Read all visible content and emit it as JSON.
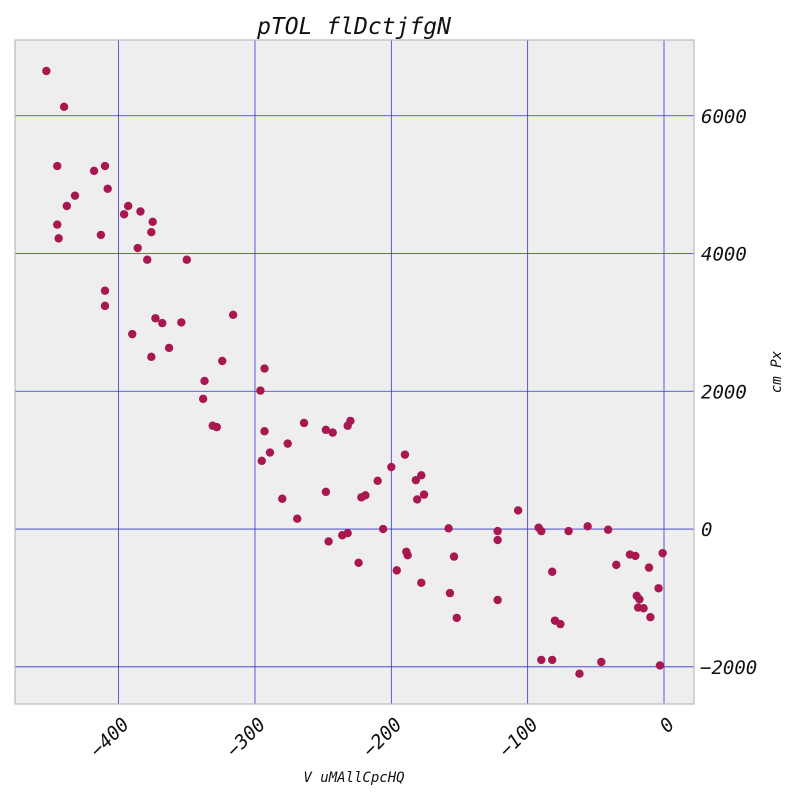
{
  "chart_data": {
    "type": "scatter",
    "title": "pTOL flDctjfgN",
    "xlabel": "V uMAllCpcHQ",
    "ylabel": "cm Px",
    "xlim": [
      -476,
      22
    ],
    "ylim": [
      -2540,
      7100
    ],
    "x_ticks": [
      -400,
      -300,
      -200,
      -100,
      0
    ],
    "y_ticks": [
      -2000,
      0,
      2000,
      4000,
      6000
    ],
    "x_tick_labels": [
      "−400",
      "−300",
      "−200",
      "−100",
      "0"
    ],
    "y_tick_labels": [
      "−2000",
      "0",
      "2000",
      "4000",
      "6000"
    ],
    "y_axis_side": "right",
    "grid": true,
    "background_color": "#eeeeee",
    "grid_color": "#3333cc",
    "point_color": "#a8174f",
    "series": [
      {
        "points": [
          [
            -453,
            6650
          ],
          [
            -440,
            6130
          ],
          [
            -445,
            5270
          ],
          [
            -432,
            4840
          ],
          [
            -438,
            4690
          ],
          [
            -445,
            4420
          ],
          [
            -444,
            4220
          ],
          [
            -418,
            5200
          ],
          [
            -410,
            5270
          ],
          [
            -408,
            4940
          ],
          [
            -413,
            4270
          ],
          [
            -393,
            4690
          ],
          [
            -396,
            4570
          ],
          [
            -384,
            4610
          ],
          [
            -375,
            4460
          ],
          [
            -376,
            4310
          ],
          [
            -386,
            4080
          ],
          [
            -379,
            3910
          ],
          [
            -350,
            3910
          ],
          [
            -410,
            3460
          ],
          [
            -410,
            3240
          ],
          [
            -316,
            3110
          ],
          [
            -373,
            3060
          ],
          [
            -368,
            2990
          ],
          [
            -354,
            3000
          ],
          [
            -390,
            2830
          ],
          [
            -363,
            2630
          ],
          [
            -376,
            2500
          ],
          [
            -324,
            2440
          ],
          [
            -293,
            2330
          ],
          [
            -337,
            2150
          ],
          [
            -338,
            1890
          ],
          [
            -296,
            2010
          ],
          [
            -331,
            1500
          ],
          [
            -328,
            1480
          ],
          [
            -293,
            1420
          ],
          [
            -276,
            1240
          ],
          [
            -289,
            1110
          ],
          [
            -295,
            990
          ],
          [
            -264,
            1540
          ],
          [
            -230,
            1570
          ],
          [
            -232,
            1500
          ],
          [
            -248,
            1440
          ],
          [
            -243,
            1400
          ],
          [
            -190,
            1080
          ],
          [
            -200,
            900
          ],
          [
            -178,
            780
          ],
          [
            -210,
            700
          ],
          [
            -182,
            710
          ],
          [
            -248,
            540
          ],
          [
            -176,
            500
          ],
          [
            -219,
            490
          ],
          [
            -222,
            460
          ],
          [
            -181,
            430
          ],
          [
            -280,
            440
          ],
          [
            -269,
            150
          ],
          [
            -107,
            270
          ],
          [
            -206,
            0
          ],
          [
            -158,
            10
          ],
          [
            -122,
            -30
          ],
          [
            -92,
            20
          ],
          [
            -90,
            -30
          ],
          [
            -70,
            -30
          ],
          [
            -56,
            40
          ],
          [
            -41,
            -10
          ],
          [
            -232,
            -60
          ],
          [
            -236,
            -90
          ],
          [
            -246,
            -180
          ],
          [
            -122,
            -160
          ],
          [
            -189,
            -330
          ],
          [
            -188,
            -380
          ],
          [
            -154,
            -400
          ],
          [
            -25,
            -370
          ],
          [
            -21,
            -390
          ],
          [
            -1,
            -350
          ],
          [
            -224,
            -490
          ],
          [
            -35,
            -520
          ],
          [
            -11,
            -560
          ],
          [
            -196,
            -600
          ],
          [
            -82,
            -620
          ],
          [
            -178,
            -780
          ],
          [
            -157,
            -930
          ],
          [
            -20,
            -970
          ],
          [
            -18,
            -1020
          ],
          [
            -4,
            -860
          ],
          [
            -122,
            -1030
          ],
          [
            -19,
            -1140
          ],
          [
            -15,
            -1150
          ],
          [
            -10,
            -1280
          ],
          [
            -152,
            -1290
          ],
          [
            -80,
            -1330
          ],
          [
            -76,
            -1380
          ],
          [
            -90,
            -1900
          ],
          [
            -82,
            -1900
          ],
          [
            -46,
            -1930
          ],
          [
            -3,
            -1980
          ],
          [
            -62,
            -2100
          ]
        ]
      }
    ]
  }
}
